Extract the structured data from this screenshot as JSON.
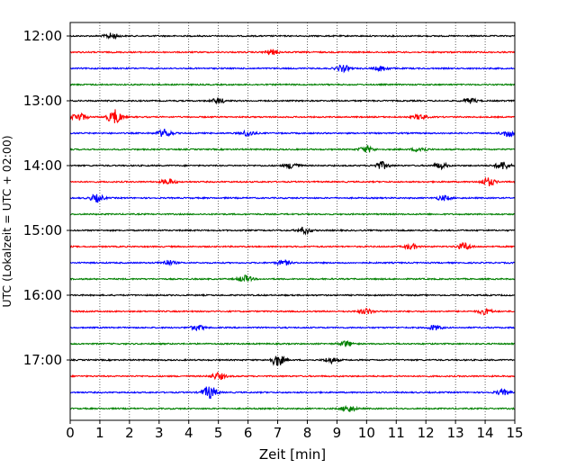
{
  "chart_data": {
    "type": "line",
    "title": "",
    "xlabel": "Zeit  [min]",
    "ylabel": "UTC (Lokalzeit = UTC + 02:00)",
    "xlim": [
      0,
      15
    ],
    "x_ticks": [
      "0",
      "1",
      "2",
      "3",
      "4",
      "5",
      "6",
      "7",
      "8",
      "9",
      "10",
      "11",
      "12",
      "13",
      "14",
      "15"
    ],
    "y_ticks": [
      "12:00",
      "13:00",
      "14:00",
      "15:00",
      "16:00",
      "17:00"
    ],
    "trace_interval_min": 15,
    "grid": "vertical dotted lines at each minute",
    "colors": [
      "#000000",
      "#ff0000",
      "#0000ff",
      "#008000"
    ],
    "traces": [
      {
        "start": "12:00",
        "color": "#000000",
        "events": [
          {
            "t": 1.4,
            "amp": 0.35
          }
        ]
      },
      {
        "start": "12:15",
        "color": "#ff0000",
        "events": [
          {
            "t": 6.8,
            "amp": 0.3
          }
        ]
      },
      {
        "start": "12:30",
        "color": "#0000ff",
        "events": [
          {
            "t": 9.2,
            "amp": 0.4
          },
          {
            "t": 10.5,
            "amp": 0.3
          }
        ]
      },
      {
        "start": "12:45",
        "color": "#008000",
        "events": []
      },
      {
        "start": "13:00",
        "color": "#000000",
        "events": [
          {
            "t": 5.0,
            "amp": 0.3
          },
          {
            "t": 13.5,
            "amp": 0.3
          }
        ]
      },
      {
        "start": "13:15",
        "color": "#ff0000",
        "events": [
          {
            "t": 0.3,
            "amp": 0.5
          },
          {
            "t": 1.5,
            "amp": 0.9
          },
          {
            "t": 11.8,
            "amp": 0.3
          }
        ]
      },
      {
        "start": "13:30",
        "color": "#0000ff",
        "events": [
          {
            "t": 3.2,
            "amp": 0.5
          },
          {
            "t": 6.0,
            "amp": 0.35
          },
          {
            "t": 14.8,
            "amp": 0.4
          }
        ]
      },
      {
        "start": "13:45",
        "color": "#008000",
        "events": [
          {
            "t": 10.0,
            "amp": 0.4
          },
          {
            "t": 11.8,
            "amp": 0.3
          }
        ]
      },
      {
        "start": "14:00",
        "color": "#000000",
        "events": [
          {
            "t": 7.5,
            "amp": 0.4
          },
          {
            "t": 10.5,
            "amp": 0.45
          },
          {
            "t": 12.5,
            "amp": 0.35
          },
          {
            "t": 14.6,
            "amp": 0.5
          }
        ]
      },
      {
        "start": "14:15",
        "color": "#ff0000",
        "events": [
          {
            "t": 3.3,
            "amp": 0.35
          },
          {
            "t": 14.1,
            "amp": 0.5
          }
        ]
      },
      {
        "start": "14:30",
        "color": "#0000ff",
        "events": [
          {
            "t": 0.9,
            "amp": 0.45
          },
          {
            "t": 12.6,
            "amp": 0.3
          }
        ]
      },
      {
        "start": "14:45",
        "color": "#008000",
        "events": []
      },
      {
        "start": "15:00",
        "color": "#000000",
        "events": [
          {
            "t": 7.9,
            "amp": 0.4
          }
        ]
      },
      {
        "start": "15:15",
        "color": "#ff0000",
        "events": [
          {
            "t": 11.5,
            "amp": 0.3
          },
          {
            "t": 13.3,
            "amp": 0.45
          }
        ]
      },
      {
        "start": "15:30",
        "color": "#0000ff",
        "events": [
          {
            "t": 3.3,
            "amp": 0.3
          },
          {
            "t": 7.2,
            "amp": 0.3
          }
        ]
      },
      {
        "start": "15:45",
        "color": "#008000",
        "events": [
          {
            "t": 5.9,
            "amp": 0.4
          }
        ]
      },
      {
        "start": "16:00",
        "color": "#000000",
        "events": []
      },
      {
        "start": "16:15",
        "color": "#ff0000",
        "events": [
          {
            "t": 10.0,
            "amp": 0.35
          },
          {
            "t": 14.0,
            "amp": 0.35
          }
        ]
      },
      {
        "start": "16:30",
        "color": "#0000ff",
        "events": [
          {
            "t": 4.3,
            "amp": 0.3
          },
          {
            "t": 12.3,
            "amp": 0.3
          }
        ]
      },
      {
        "start": "16:45",
        "color": "#008000",
        "events": [
          {
            "t": 9.3,
            "amp": 0.35
          }
        ]
      },
      {
        "start": "17:00",
        "color": "#000000",
        "events": [
          {
            "t": 7.0,
            "amp": 0.7
          },
          {
            "t": 8.8,
            "amp": 0.35
          }
        ]
      },
      {
        "start": "17:15",
        "color": "#ff0000",
        "events": [
          {
            "t": 5.0,
            "amp": 0.4
          }
        ]
      },
      {
        "start": "17:30",
        "color": "#0000ff",
        "events": [
          {
            "t": 4.7,
            "amp": 0.8
          },
          {
            "t": 14.6,
            "amp": 0.3
          }
        ]
      },
      {
        "start": "17:45",
        "color": "#008000",
        "events": [
          {
            "t": 9.4,
            "amp": 0.4
          }
        ]
      }
    ]
  }
}
